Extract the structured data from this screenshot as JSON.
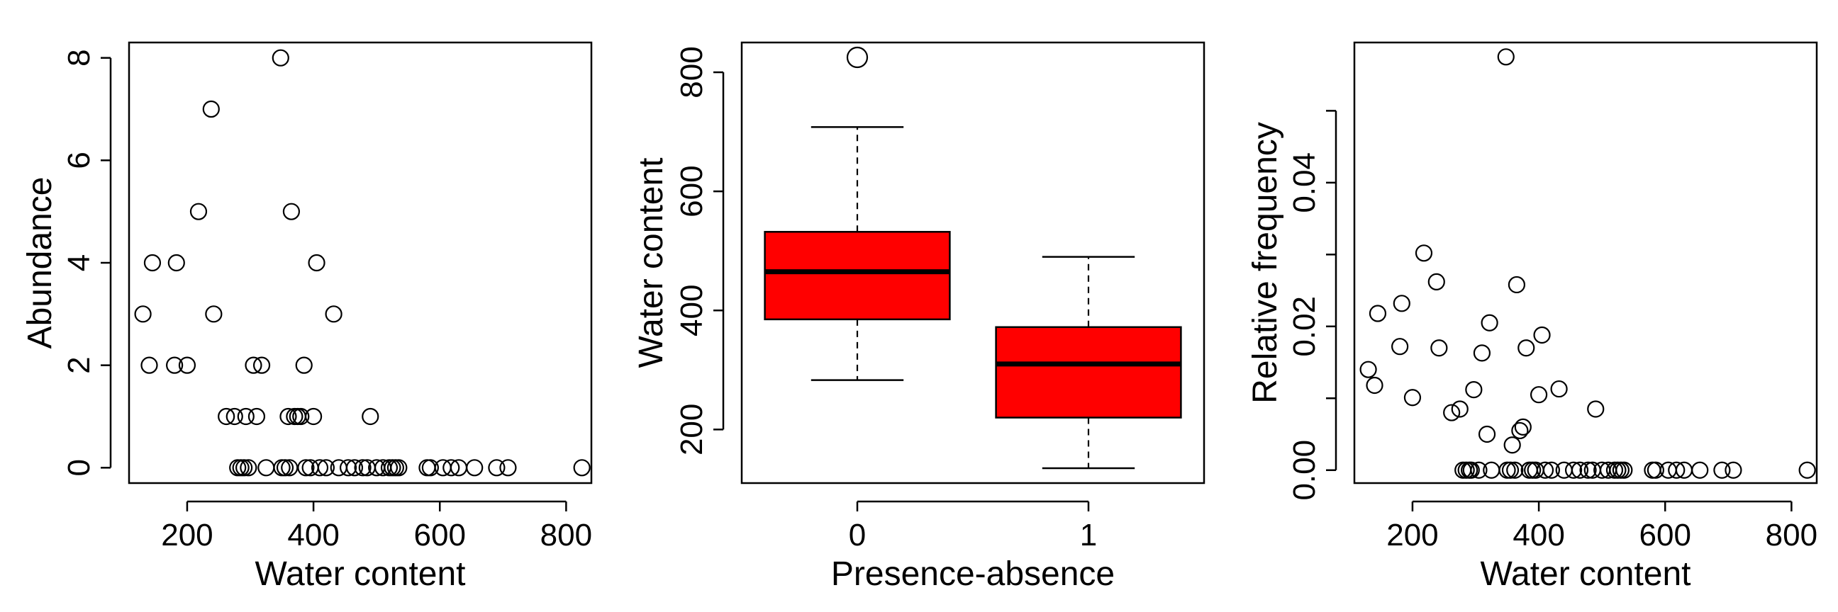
{
  "chart_data": [
    {
      "type": "scatter",
      "xlabel": "Water content",
      "ylabel": "Abundance",
      "xlim": [
        108,
        840
      ],
      "ylim": [
        -0.3,
        8.3
      ],
      "xticks": [
        200,
        400,
        600,
        800
      ],
      "xtick_labels": [
        "200",
        "400",
        "600",
        "800"
      ],
      "yticks": [
        0,
        2,
        4,
        6,
        8
      ],
      "ytick_labels": [
        "0",
        "2",
        "4",
        "6",
        "8"
      ],
      "points": [
        [
          130,
          3
        ],
        [
          140,
          2
        ],
        [
          145,
          4
        ],
        [
          180,
          2
        ],
        [
          183,
          4
        ],
        [
          200,
          2
        ],
        [
          218,
          5
        ],
        [
          238,
          7
        ],
        [
          242,
          3
        ],
        [
          262,
          1
        ],
        [
          275,
          1
        ],
        [
          280,
          0
        ],
        [
          285,
          0
        ],
        [
          290,
          0
        ],
        [
          293,
          1
        ],
        [
          297,
          0
        ],
        [
          305,
          2
        ],
        [
          310,
          1
        ],
        [
          318,
          2
        ],
        [
          325,
          0
        ],
        [
          348,
          8
        ],
        [
          350,
          0
        ],
        [
          355,
          0
        ],
        [
          360,
          1
        ],
        [
          362,
          0
        ],
        [
          365,
          5
        ],
        [
          370,
          1
        ],
        [
          375,
          1
        ],
        [
          380,
          1
        ],
        [
          385,
          2
        ],
        [
          388,
          0
        ],
        [
          395,
          0
        ],
        [
          400,
          1
        ],
        [
          405,
          4
        ],
        [
          410,
          0
        ],
        [
          420,
          0
        ],
        [
          432,
          3
        ],
        [
          440,
          0
        ],
        [
          455,
          0
        ],
        [
          465,
          0
        ],
        [
          478,
          0
        ],
        [
          485,
          0
        ],
        [
          490,
          1
        ],
        [
          500,
          0
        ],
        [
          510,
          0
        ],
        [
          520,
          0
        ],
        [
          525,
          0
        ],
        [
          530,
          0
        ],
        [
          535,
          0
        ],
        [
          580,
          0
        ],
        [
          585,
          0
        ],
        [
          605,
          0
        ],
        [
          618,
          0
        ],
        [
          630,
          0
        ],
        [
          655,
          0
        ],
        [
          690,
          0
        ],
        [
          708,
          0
        ],
        [
          825,
          0
        ]
      ]
    },
    {
      "type": "box",
      "xlabel": "Presence-absence",
      "ylabel": "Water content",
      "categories": [
        "0",
        "1"
      ],
      "ylim": [
        110,
        850
      ],
      "yticks": [
        200,
        400,
        600,
        800
      ],
      "ytick_labels": [
        "200",
        "400",
        "600",
        "800"
      ],
      "fill_color": "#ff0000",
      "boxes": [
        {
          "category": "0",
          "whisker_low": 283,
          "q1": 385,
          "median": 465,
          "q3": 532,
          "whisker_high": 708,
          "outliers": [
            825
          ]
        },
        {
          "category": "1",
          "whisker_low": 135,
          "q1": 220,
          "median": 310,
          "q3": 372,
          "whisker_high": 490,
          "outliers": []
        }
      ]
    },
    {
      "type": "scatter",
      "xlabel": "Water content",
      "ylabel": "Relative frequency",
      "xlim": [
        108,
        840
      ],
      "ylim": [
        -0.0018,
        0.0595
      ],
      "xticks": [
        200,
        400,
        600,
        800
      ],
      "xtick_labels": [
        "200",
        "400",
        "600",
        "800"
      ],
      "yticks": [
        0.0,
        0.01,
        0.02,
        0.03,
        0.04,
        0.05
      ],
      "ytick_labels": [
        "0.00",
        "",
        "0.02",
        "",
        "0.04",
        ""
      ],
      "points": [
        [
          130,
          0.014
        ],
        [
          140,
          0.0118
        ],
        [
          145,
          0.0218
        ],
        [
          180,
          0.0172
        ],
        [
          183,
          0.0232
        ],
        [
          200,
          0.0101
        ],
        [
          218,
          0.0302
        ],
        [
          238,
          0.0262
        ],
        [
          242,
          0.017
        ],
        [
          262,
          0.008
        ],
        [
          275,
          0.0085
        ],
        [
          280,
          0
        ],
        [
          285,
          0
        ],
        [
          290,
          0
        ],
        [
          293,
          0
        ],
        [
          297,
          0.0112
        ],
        [
          305,
          0
        ],
        [
          310,
          0.0163
        ],
        [
          318,
          0.005
        ],
        [
          322,
          0.0205
        ],
        [
          325,
          0
        ],
        [
          348,
          0.0575
        ],
        [
          350,
          0
        ],
        [
          355,
          0
        ],
        [
          358,
          0.0035
        ],
        [
          362,
          0
        ],
        [
          365,
          0.0258
        ],
        [
          370,
          0.0055
        ],
        [
          375,
          0.006
        ],
        [
          380,
          0.017
        ],
        [
          385,
          0
        ],
        [
          390,
          0
        ],
        [
          395,
          0
        ],
        [
          400,
          0.0105
        ],
        [
          405,
          0.0188
        ],
        [
          410,
          0
        ],
        [
          420,
          0
        ],
        [
          432,
          0.0113
        ],
        [
          440,
          0
        ],
        [
          455,
          0
        ],
        [
          465,
          0
        ],
        [
          478,
          0
        ],
        [
          485,
          0
        ],
        [
          490,
          0.0085
        ],
        [
          500,
          0
        ],
        [
          510,
          0
        ],
        [
          520,
          0
        ],
        [
          525,
          0
        ],
        [
          530,
          0
        ],
        [
          535,
          0
        ],
        [
          580,
          0
        ],
        [
          585,
          0
        ],
        [
          605,
          0
        ],
        [
          618,
          0
        ],
        [
          630,
          0
        ],
        [
          655,
          0
        ],
        [
          690,
          0
        ],
        [
          708,
          0
        ],
        [
          825,
          0
        ]
      ]
    }
  ]
}
